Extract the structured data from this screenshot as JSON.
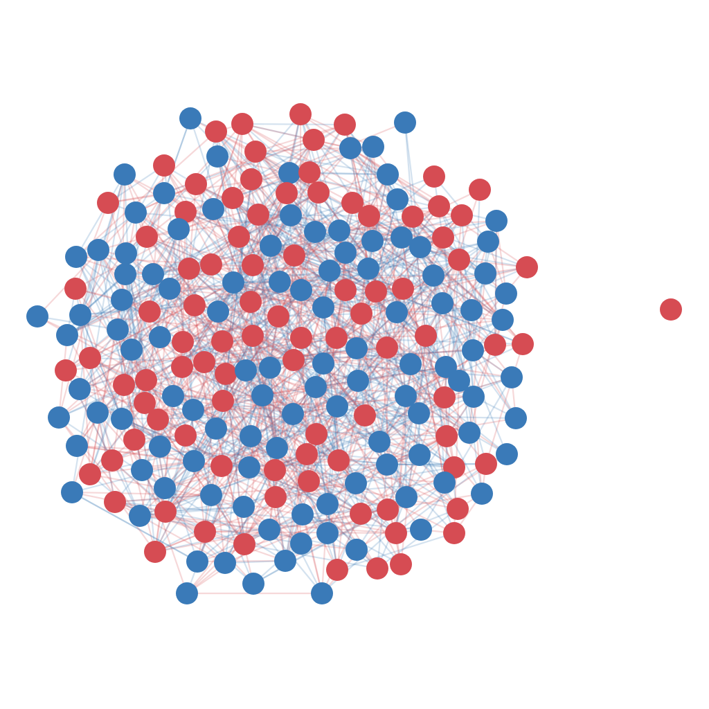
{
  "diagram": {
    "type": "network-graph",
    "layout": "force-directed",
    "node_count": 234,
    "edges_drawn": 1200,
    "edge_opacity": 0.22,
    "colors": {
      "blue_group": "#3a7ab8",
      "red_group": "#d64c53",
      "background": "#ffffff"
    },
    "groups": [
      {
        "id": "blue",
        "color": "#3a7ab8",
        "count": 119
      },
      {
        "id": "red",
        "color": "#d64c53",
        "count": 115
      }
    ],
    "isolated_nodes": [
      {
        "group": "red"
      }
    ]
  }
}
